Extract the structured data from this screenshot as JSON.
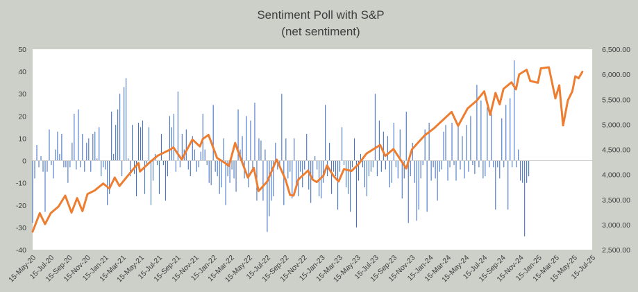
{
  "chart_data": {
    "type": "bar+line",
    "title": "Sentiment Poll with S&P",
    "subtitle": "(net sentiment)",
    "left_axis": {
      "ylim": [
        -40,
        50
      ],
      "ticks": [
        "50",
        "40",
        "30",
        "20",
        "10",
        "0",
        "-10",
        "-20",
        "-30",
        "-40"
      ]
    },
    "right_axis": {
      "ylim": [
        2500,
        6500
      ],
      "ticks": [
        "6,500.00",
        "6,000.00",
        "5,500.00",
        "5,000.00",
        "4,500.00",
        "4,000.00",
        "3,500.00",
        "3,000.00",
        "2,500.00"
      ]
    },
    "x_tick_labels": [
      "15-May-20",
      "15-Jul-20",
      "15-Sep-20",
      "15-Nov-20",
      "15-Jan-21",
      "15-Mar-21",
      "15-May-21",
      "15-Jul-21",
      "15-Sep-21",
      "15-Nov-21",
      "15-Jan-22",
      "15-Mar-22",
      "15-May-22",
      "15-Jul-22",
      "15-Sep-22",
      "15-Nov-22",
      "15-Jan-23",
      "15-Mar-23",
      "15-May-23",
      "15-Jul-23",
      "15-Sep-23",
      "15-Nov-23",
      "15-Jan-24",
      "15-Mar-24",
      "15-May-24",
      "15-Jul-24",
      "15-Sep-24",
      "15-Nov-24",
      "15-Jan-25",
      "15-Mar-25",
      "15-May-25",
      "15-Jul-25"
    ],
    "x_range": [
      "2020-05-15",
      "2025-07-15"
    ],
    "sentiment_series": {
      "type": "bar",
      "start_date": "2020-05-15",
      "interval_days": 7,
      "values": [
        -28,
        -8,
        7,
        -3,
        2,
        -5,
        -23,
        -5,
        14,
        -2,
        -8,
        5,
        13,
        3,
        12,
        -3,
        -3,
        -10,
        -3,
        8,
        21,
        -4,
        23,
        -3,
        12,
        -5,
        8,
        10,
        -5,
        12,
        13,
        1,
        15,
        -7,
        -3,
        -4,
        -20,
        -15,
        22,
        3,
        16,
        23,
        30,
        -7,
        33,
        37,
        1,
        -7,
        16,
        -6,
        -16,
        17,
        15,
        18,
        -15,
        -2,
        15,
        -20,
        -9,
        3,
        -2,
        -15,
        12,
        -2,
        -18,
        -7,
        20,
        15,
        21,
        -5,
        31,
        -3,
        12,
        5,
        14,
        -4,
        -7,
        11,
        5,
        -5,
        -3,
        4,
        21,
        5,
        -2,
        -10,
        -11,
        25,
        -5,
        -7,
        -15,
        -12,
        10,
        -20,
        -7,
        -10,
        -4,
        -8,
        -14,
        23,
        5,
        11,
        -8,
        20,
        -12,
        18,
        -5,
        26,
        -18,
        10,
        9,
        -18,
        5,
        -32,
        -25,
        -18,
        -16,
        8,
        -4,
        -2,
        30,
        -20,
        10,
        -8,
        -5,
        -17,
        10,
        -13,
        -16,
        -5,
        -12,
        -4,
        12,
        -13,
        -19,
        -9,
        2,
        -4,
        -16,
        -17,
        -10,
        25,
        -7,
        8,
        -15,
        -5,
        -7,
        -22,
        -5,
        15,
        -2,
        -12,
        -15,
        -23,
        -3,
        10,
        -30,
        -9,
        3,
        -3,
        -12,
        -16,
        -7,
        -5,
        -3,
        30,
        -7,
        18,
        -5,
        13,
        -4,
        11,
        -12,
        -10,
        17,
        -3,
        -8,
        14,
        -17,
        -8,
        22,
        -28,
        -7,
        8,
        -10,
        -27,
        -22,
        -8,
        -2,
        14,
        -23,
        17,
        -9,
        -3,
        -8,
        -18,
        -5,
        -4,
        13,
        16,
        -9,
        -3,
        17,
        -2,
        -9,
        16,
        -4,
        11,
        -8,
        16,
        -5,
        20,
        -2,
        -6,
        34,
        -3,
        27,
        -8,
        -7,
        24,
        -3,
        22,
        -3,
        -22,
        -3,
        -8,
        19,
        -3,
        25,
        -22,
        28,
        -3,
        45,
        -3,
        5,
        -9,
        -10,
        -34,
        -10,
        -7
      ]
    },
    "sp500_series": {
      "type": "line",
      "color": "#ed7d31",
      "points": [
        [
          "2020-05-15",
          2860
        ],
        [
          "2020-06-08",
          3230
        ],
        [
          "2020-06-26",
          3010
        ],
        [
          "2020-07-15",
          3230
        ],
        [
          "2020-08-10",
          3360
        ],
        [
          "2020-09-02",
          3580
        ],
        [
          "2020-09-23",
          3240
        ],
        [
          "2020-10-12",
          3530
        ],
        [
          "2020-10-30",
          3270
        ],
        [
          "2020-11-16",
          3610
        ],
        [
          "2020-12-10",
          3680
        ],
        [
          "2021-01-08",
          3820
        ],
        [
          "2021-01-29",
          3720
        ],
        [
          "2021-02-16",
          3940
        ],
        [
          "2021-03-04",
          3770
        ],
        [
          "2021-03-31",
          3970
        ],
        [
          "2021-05-07",
          4230
        ],
        [
          "2021-05-12",
          4060
        ],
        [
          "2021-06-15",
          4250
        ],
        [
          "2021-07-12",
          4380
        ],
        [
          "2021-08-16",
          4480
        ],
        [
          "2021-09-02",
          4540
        ],
        [
          "2021-09-30",
          4300
        ],
        [
          "2021-10-15",
          4470
        ],
        [
          "2021-11-05",
          4700
        ],
        [
          "2021-11-30",
          4560
        ],
        [
          "2021-12-10",
          4710
        ],
        [
          "2021-12-29",
          4790
        ],
        [
          "2022-01-27",
          4330
        ],
        [
          "2022-02-23",
          4230
        ],
        [
          "2022-03-08",
          4170
        ],
        [
          "2022-03-29",
          4630
        ],
        [
          "2022-04-11",
          4410
        ],
        [
          "2022-05-11",
          3940
        ],
        [
          "2022-05-31",
          4130
        ],
        [
          "2022-06-16",
          3670
        ],
        [
          "2022-07-15",
          3860
        ],
        [
          "2022-08-16",
          4300
        ],
        [
          "2022-09-15",
          3900
        ],
        [
          "2022-09-30",
          3590
        ],
        [
          "2022-10-12",
          3580
        ],
        [
          "2022-10-28",
          3900
        ],
        [
          "2022-11-30",
          4080
        ],
        [
          "2022-12-15",
          3900
        ],
        [
          "2022-12-29",
          3850
        ],
        [
          "2023-01-20",
          3970
        ],
        [
          "2023-02-02",
          4180
        ],
        [
          "2023-02-24",
          3970
        ],
        [
          "2023-03-13",
          3860
        ],
        [
          "2023-03-31",
          4110
        ],
        [
          "2023-04-25",
          4070
        ],
        [
          "2023-05-18",
          4200
        ],
        [
          "2023-06-15",
          4420
        ],
        [
          "2023-07-31",
          4590
        ],
        [
          "2023-08-17",
          4370
        ],
        [
          "2023-09-14",
          4510
        ],
        [
          "2023-10-27",
          4120
        ],
        [
          "2023-11-15",
          4500
        ],
        [
          "2023-12-28",
          4780
        ],
        [
          "2024-01-30",
          4930
        ],
        [
          "2024-03-28",
          5250
        ],
        [
          "2024-04-19",
          4970
        ],
        [
          "2024-05-21",
          5320
        ],
        [
          "2024-06-20",
          5470
        ],
        [
          "2024-07-16",
          5660
        ],
        [
          "2024-08-05",
          5190
        ],
        [
          "2024-08-23",
          5630
        ],
        [
          "2024-09-06",
          5400
        ],
        [
          "2024-09-19",
          5710
        ],
        [
          "2024-10-16",
          5840
        ],
        [
          "2024-10-31",
          5700
        ],
        [
          "2024-11-11",
          6000
        ],
        [
          "2024-12-06",
          6090
        ],
        [
          "2024-12-18",
          5870
        ],
        [
          "2025-01-13",
          5830
        ],
        [
          "2025-01-23",
          6120
        ],
        [
          "2025-02-19",
          6140
        ],
        [
          "2025-03-13",
          5520
        ],
        [
          "2025-03-26",
          5780
        ],
        [
          "2025-04-08",
          4980
        ],
        [
          "2025-04-24",
          5480
        ],
        [
          "2025-05-09",
          5660
        ],
        [
          "2025-05-19",
          5960
        ],
        [
          "2025-05-30",
          5920
        ],
        [
          "2025-06-12",
          6050
        ]
      ]
    },
    "colors": {
      "background": "#ccd0c9",
      "plot_area": "#ffffff",
      "bars": "#4472c4",
      "line": "#ed7d31"
    }
  }
}
